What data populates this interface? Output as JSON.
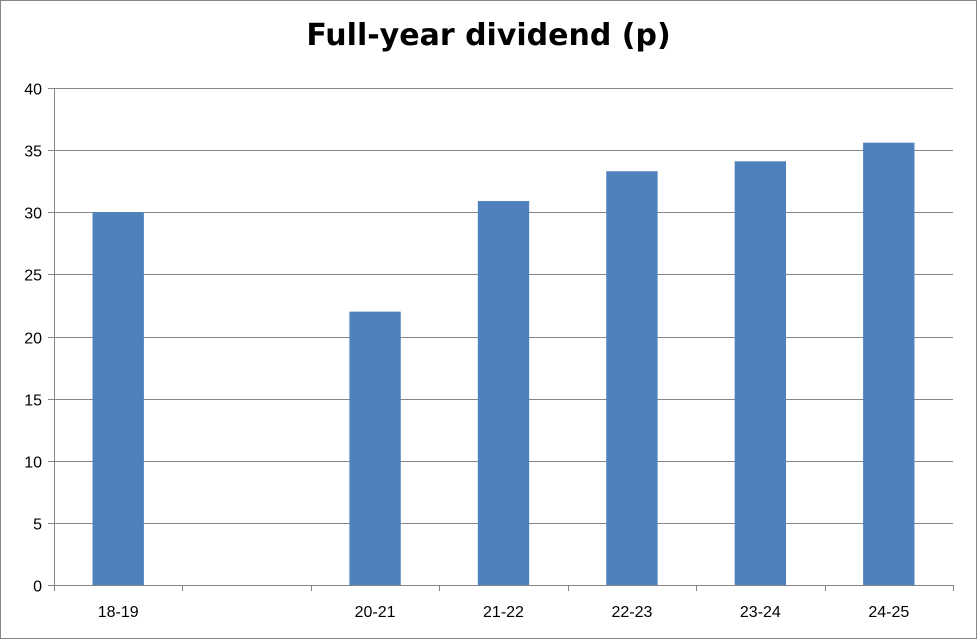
{
  "chart_data": {
    "type": "bar",
    "title": "Full-year dividend (p)",
    "xlabel": "",
    "ylabel": "",
    "categories": [
      "18-19",
      "",
      "20-21",
      "21-22",
      "22-23",
      "23-24",
      "24-25"
    ],
    "values": [
      30,
      null,
      22,
      30.9,
      33.3,
      34.1,
      35.6
    ],
    "ylim": [
      0,
      40
    ],
    "yticks": [
      0,
      5,
      10,
      15,
      20,
      25,
      30,
      35,
      40
    ],
    "grid": true,
    "legend": "none",
    "bar_color": "#4F81BD",
    "grid_color": "#868686"
  }
}
